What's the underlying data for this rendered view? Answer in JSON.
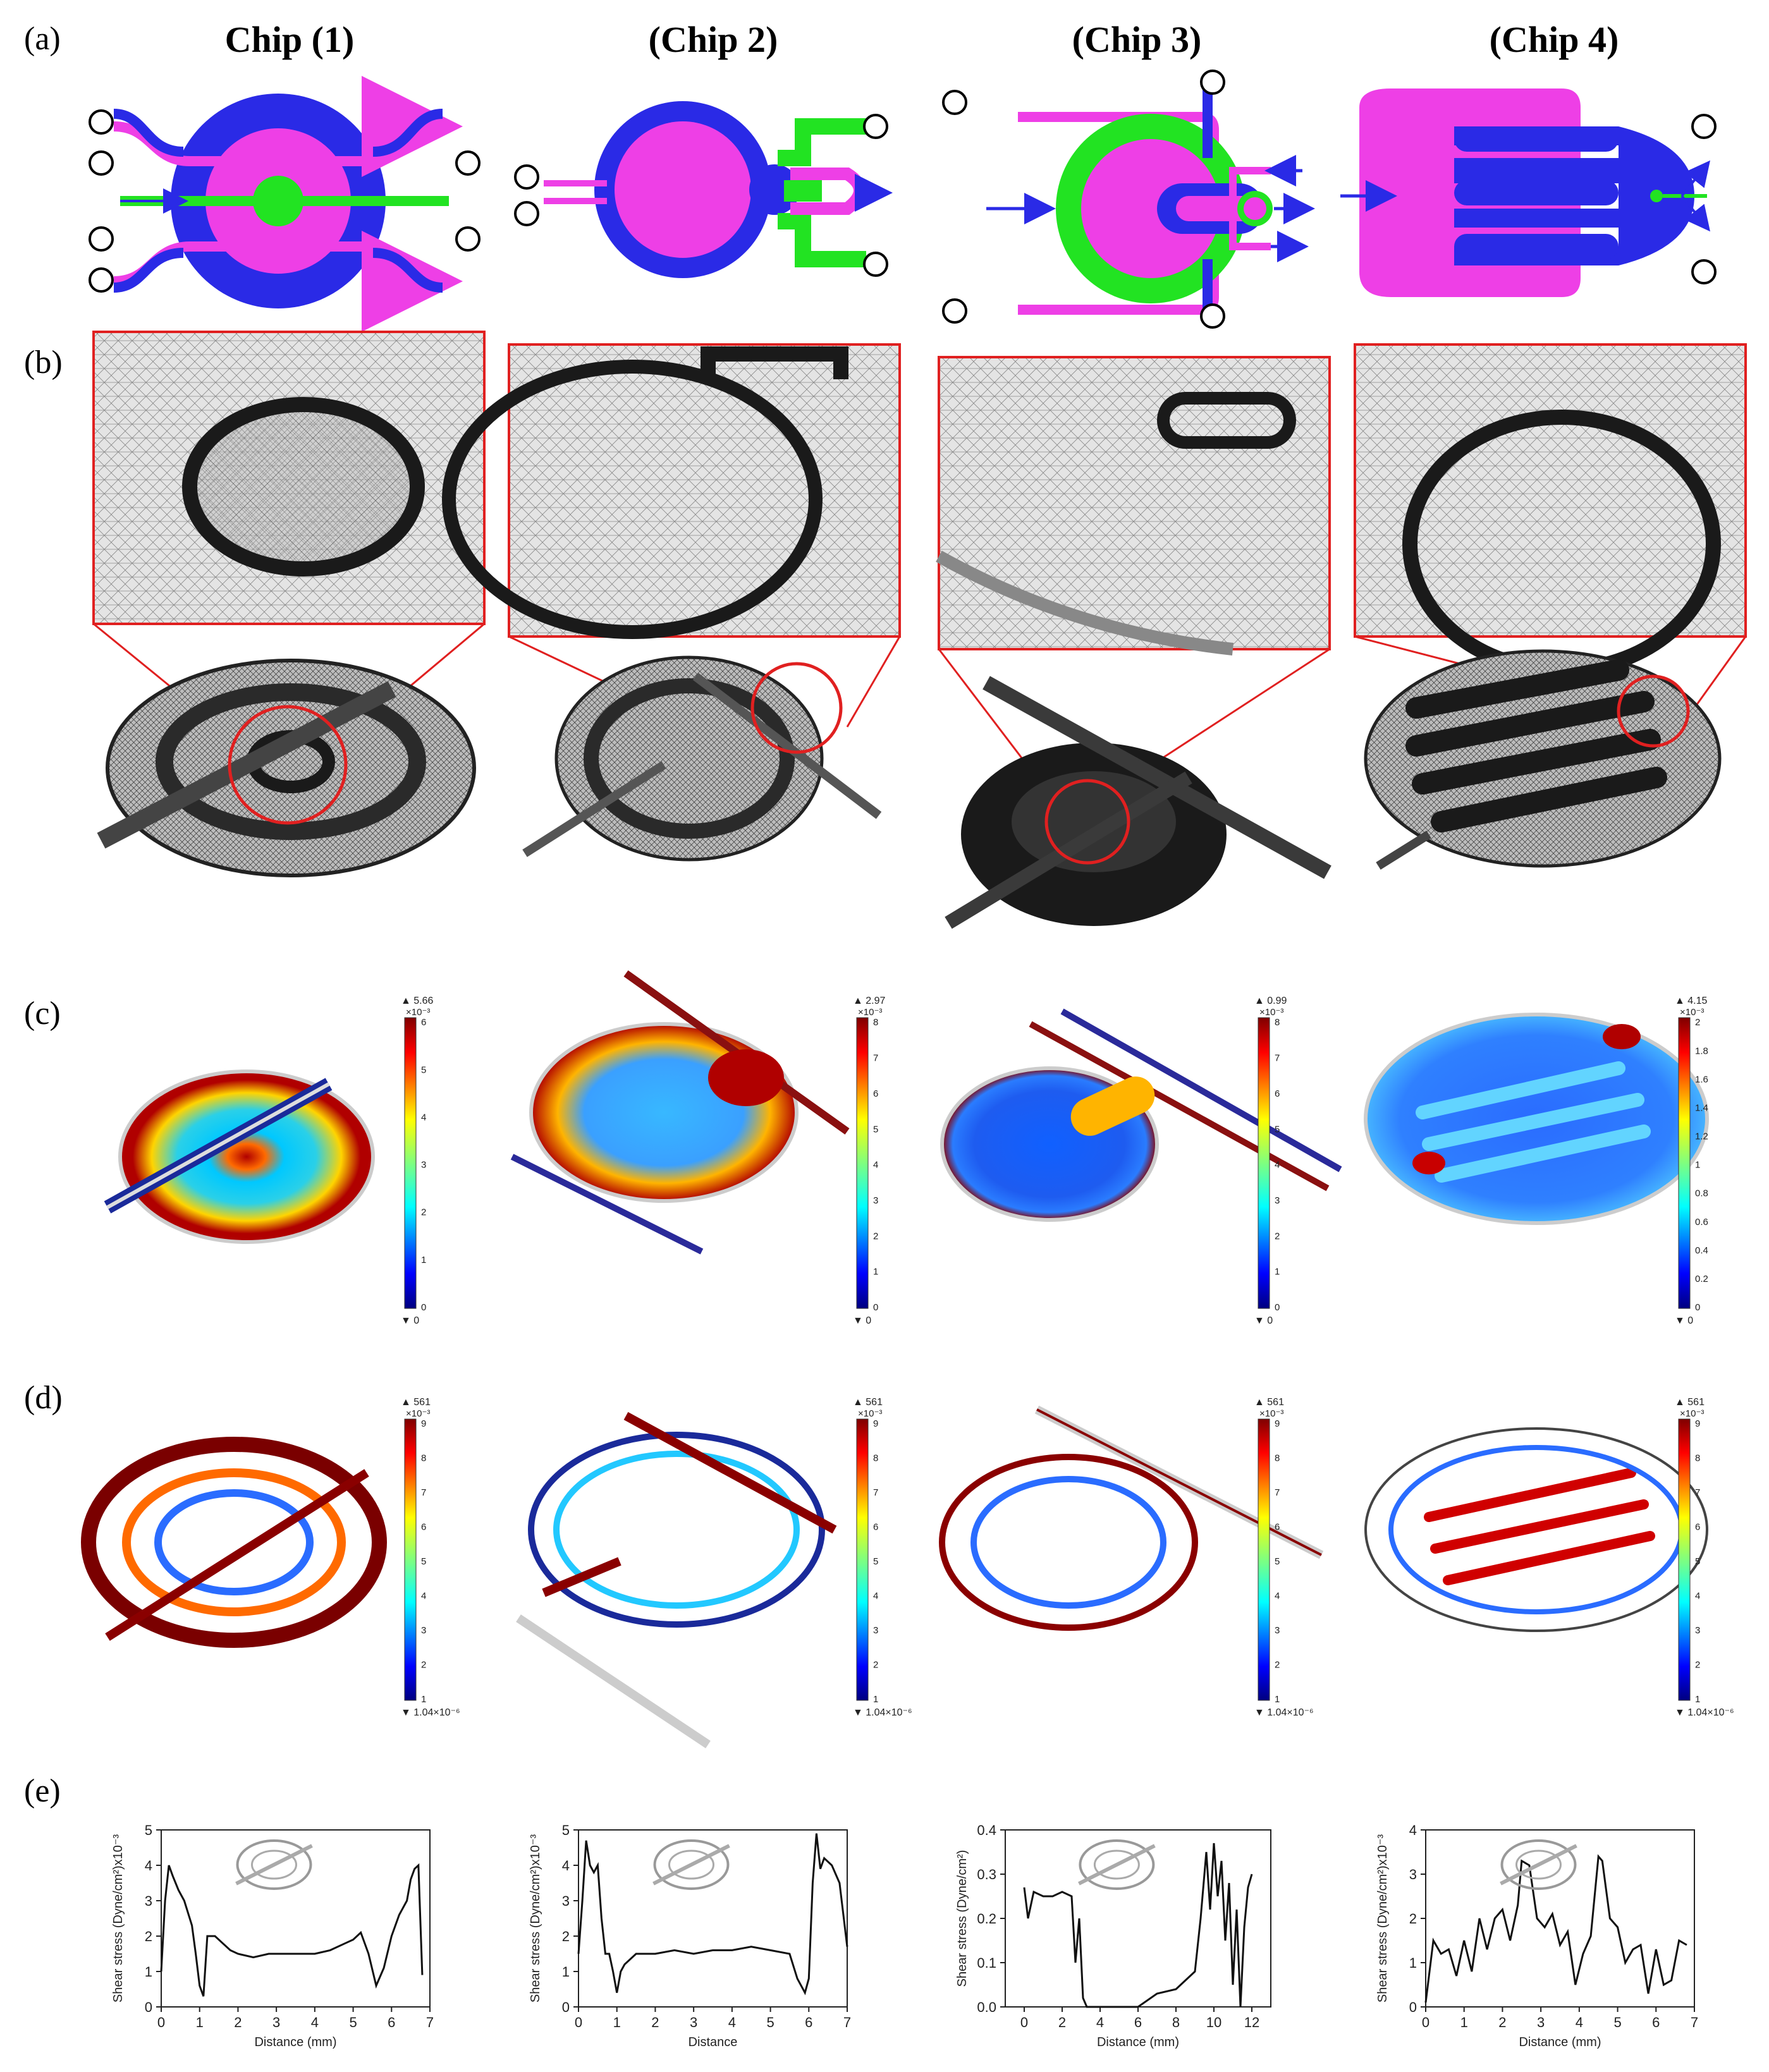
{
  "panel_labels": [
    "(a)",
    "(b)",
    "(c)",
    "(d)",
    "(e)"
  ],
  "chip_headers": [
    "Chip (1)",
    "(Chip 2)",
    "(Chip 3)",
    "(Chip 4)"
  ],
  "colors": {
    "blue": "#2a2ae6",
    "magenta": "#ee3fe6",
    "green": "#22e322",
    "mesh_light": "#dcdcdc",
    "mesh_dark": "#2a2a2a",
    "zoom_frame": "#e02020",
    "curve": "#111111"
  },
  "colorbars_c": [
    {
      "max_label": "▲ 5.66",
      "exp_label": "×10⁻³",
      "min_label": "▼ 0",
      "ticks": [
        "0",
        "1",
        "2",
        "3",
        "4",
        "5",
        "6"
      ]
    },
    {
      "max_label": "▲ 2.97",
      "exp_label": "×10⁻³",
      "min_label": "▼ 0",
      "ticks": [
        "0",
        "1",
        "2",
        "3",
        "4",
        "5",
        "6",
        "7",
        "8"
      ]
    },
    {
      "max_label": "▲ 0.99",
      "exp_label": "×10⁻³",
      "min_label": "▼ 0",
      "ticks": [
        "0",
        "1",
        "2",
        "3",
        "4",
        "5",
        "6",
        "7",
        "8"
      ]
    },
    {
      "max_label": "▲ 4.15",
      "exp_label": "×10⁻³",
      "min_label": "▼ 0",
      "ticks": [
        "0",
        "0.2",
        "0.4",
        "0.6",
        "0.8",
        "1",
        "1.2",
        "1.4",
        "1.6",
        "1.8",
        "2"
      ]
    }
  ],
  "colorbars_d": [
    {
      "max_label": "▲ 561",
      "exp_label": "×10⁻³",
      "min_label": "▼ 1.04×10⁻⁶",
      "ticks": [
        "1",
        "2",
        "3",
        "4",
        "5",
        "6",
        "7",
        "8",
        "9"
      ]
    },
    {
      "max_label": "▲ 561",
      "exp_label": "×10⁻³",
      "min_label": "▼ 1.04×10⁻⁶",
      "ticks": [
        "1",
        "2",
        "3",
        "4",
        "5",
        "6",
        "7",
        "8",
        "9"
      ]
    },
    {
      "max_label": "▲ 561",
      "exp_label": "×10⁻³",
      "min_label": "▼ 1.04×10⁻⁶",
      "ticks": [
        "1",
        "2",
        "3",
        "4",
        "5",
        "6",
        "7",
        "8",
        "9"
      ]
    },
    {
      "max_label": "▲ 561",
      "exp_label": "×10⁻³",
      "min_label": "▼ 1.04×10⁻⁶",
      "ticks": [
        "1",
        "2",
        "3",
        "4",
        "5",
        "6",
        "7",
        "8",
        "9"
      ]
    }
  ],
  "chart_data": [
    {
      "type": "line",
      "xlabel": "Distance (mm)",
      "ylabel": "Shear stress (Dyne/cm²)x10⁻³",
      "xlim": [
        0,
        7
      ],
      "ylim": [
        0,
        5
      ],
      "xticks": [
        "0",
        "1",
        "2",
        "3",
        "4",
        "5",
        "6",
        "7"
      ],
      "yticks": [
        "0",
        "1",
        "2",
        "3",
        "4",
        "5"
      ],
      "x": [
        0.0,
        0.1,
        0.2,
        0.3,
        0.45,
        0.6,
        0.8,
        0.9,
        1.0,
        1.1,
        1.2,
        1.4,
        1.6,
        1.8,
        2.0,
        2.4,
        2.8,
        3.2,
        3.6,
        4.0,
        4.4,
        4.8,
        5.0,
        5.2,
        5.4,
        5.6,
        5.8,
        6.0,
        6.2,
        6.4,
        6.5,
        6.6,
        6.7,
        6.8
      ],
      "y": [
        1.0,
        3.0,
        4.0,
        3.7,
        3.3,
        3.0,
        2.3,
        1.5,
        0.6,
        0.3,
        2.0,
        2.0,
        1.8,
        1.6,
        1.5,
        1.4,
        1.5,
        1.5,
        1.5,
        1.5,
        1.6,
        1.8,
        1.9,
        2.1,
        1.5,
        0.6,
        1.1,
        2.0,
        2.6,
        3.0,
        3.6,
        3.9,
        4.0,
        0.9
      ]
    },
    {
      "type": "line",
      "xlabel": "Distance",
      "ylabel": "Shear stress (Dyne/cm²)x10⁻³",
      "xlim": [
        0,
        7
      ],
      "ylim": [
        0,
        5
      ],
      "xticks": [
        "0",
        "1",
        "2",
        "3",
        "4",
        "5",
        "6",
        "7"
      ],
      "yticks": [
        "0",
        "1",
        "2",
        "3",
        "4",
        "5"
      ],
      "x": [
        0.0,
        0.1,
        0.2,
        0.3,
        0.4,
        0.5,
        0.6,
        0.7,
        0.8,
        0.9,
        1.0,
        1.1,
        1.2,
        1.5,
        2.0,
        2.5,
        3.0,
        3.5,
        4.0,
        4.5,
        5.0,
        5.5,
        5.7,
        5.9,
        6.0,
        6.1,
        6.2,
        6.3,
        6.4,
        6.6,
        6.8,
        7.0
      ],
      "y": [
        1.5,
        3.0,
        4.7,
        4.0,
        3.8,
        4.0,
        2.5,
        1.5,
        1.5,
        1.0,
        0.4,
        1.0,
        1.2,
        1.5,
        1.5,
        1.6,
        1.5,
        1.6,
        1.6,
        1.7,
        1.6,
        1.5,
        0.8,
        0.4,
        0.8,
        3.5,
        4.9,
        3.9,
        4.2,
        4.0,
        3.5,
        1.7
      ]
    },
    {
      "type": "line",
      "xlabel": "Distance (mm)",
      "ylabel": "Shear stress (Dyne/cm²)",
      "xlim": [
        -1,
        13
      ],
      "ylim": [
        0,
        0.4
      ],
      "xticks": [
        "0",
        "2",
        "4",
        "6",
        "8",
        "10",
        "12"
      ],
      "yticks": [
        "0.0",
        "0.1",
        "0.2",
        "0.3",
        "0.4"
      ],
      "x": [
        0.0,
        0.2,
        0.5,
        1.0,
        1.5,
        2.0,
        2.5,
        2.7,
        2.9,
        3.1,
        3.3,
        3.6,
        4.0,
        5.0,
        6.0,
        7.0,
        8.0,
        8.5,
        9.0,
        9.3,
        9.6,
        9.8,
        10.0,
        10.2,
        10.4,
        10.6,
        10.8,
        11.0,
        11.2,
        11.4,
        11.6,
        11.8,
        12.0
      ],
      "y": [
        0.27,
        0.2,
        0.26,
        0.25,
        0.25,
        0.26,
        0.25,
        0.1,
        0.2,
        0.02,
        0.0,
        0.0,
        0.0,
        0.0,
        0.0,
        0.03,
        0.04,
        0.06,
        0.08,
        0.2,
        0.35,
        0.22,
        0.37,
        0.25,
        0.33,
        0.15,
        0.28,
        0.05,
        0.22,
        0.0,
        0.18,
        0.27,
        0.3
      ]
    },
    {
      "type": "line",
      "xlabel": "Distance (mm)",
      "ylabel": "Shear stress (Dyne/cm²)x10⁻³",
      "xlim": [
        0,
        7
      ],
      "ylim": [
        0,
        4
      ],
      "xticks": [
        "0",
        "1",
        "2",
        "3",
        "4",
        "5",
        "6",
        "7"
      ],
      "yticks": [
        "0",
        "1",
        "2",
        "3",
        "4"
      ],
      "x": [
        0.0,
        0.2,
        0.4,
        0.6,
        0.8,
        1.0,
        1.2,
        1.4,
        1.6,
        1.8,
        2.0,
        2.2,
        2.4,
        2.5,
        2.7,
        2.9,
        3.1,
        3.3,
        3.5,
        3.7,
        3.9,
        4.1,
        4.3,
        4.5,
        4.6,
        4.8,
        5.0,
        5.2,
        5.4,
        5.6,
        5.8,
        6.0,
        6.2,
        6.4,
        6.6,
        6.8
      ],
      "y": [
        0.1,
        1.5,
        1.2,
        1.3,
        0.7,
        1.5,
        0.8,
        2.0,
        1.3,
        2.0,
        2.2,
        1.5,
        2.3,
        3.3,
        3.2,
        2.0,
        1.8,
        2.1,
        1.4,
        1.7,
        0.5,
        1.2,
        1.6,
        3.4,
        3.3,
        2.0,
        1.8,
        1.0,
        1.3,
        1.4,
        0.3,
        1.3,
        0.5,
        0.6,
        1.5,
        1.4
      ]
    }
  ]
}
